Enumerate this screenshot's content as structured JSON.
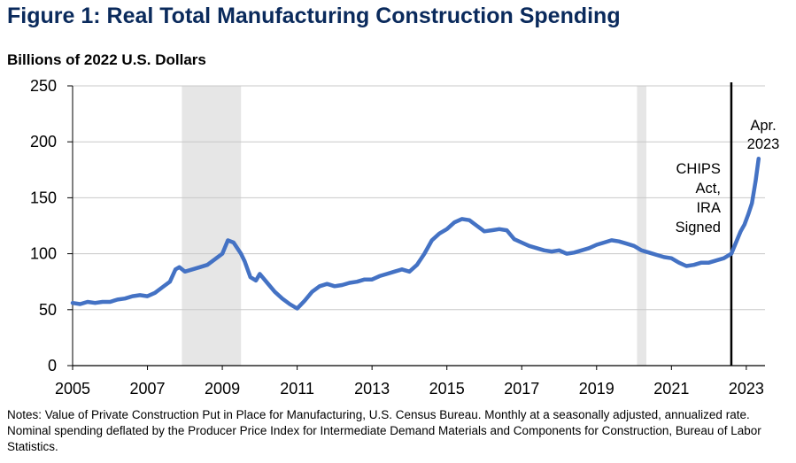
{
  "chart_data": {
    "type": "line",
    "title": "Figure 1: Real Total Manufacturing Construction Spending",
    "ylabel": "Billions of 2022 U.S. Dollars",
    "xlabel": "",
    "xlim": [
      2005,
      2023.5
    ],
    "ylim": [
      0,
      250
    ],
    "yticks": [
      "0",
      "50",
      "100",
      "150",
      "200",
      "250"
    ],
    "xticks": [
      "2005",
      "2007",
      "2009",
      "2011",
      "2013",
      "2015",
      "2017",
      "2019",
      "2021",
      "2023"
    ],
    "recession_shading": [
      [
        2007.92,
        2009.5
      ],
      [
        2020.08,
        2020.33
      ]
    ],
    "event_line": {
      "x": 2022.6,
      "label": [
        "CHIPS",
        "Act,",
        "IRA",
        "Signed"
      ]
    },
    "end_label": [
      "Apr.",
      "2023"
    ],
    "line_color": "#4472c4",
    "series": [
      {
        "x": [
          2005.0,
          2005.2,
          2005.4,
          2005.6,
          2005.8,
          2006.0,
          2006.2,
          2006.4,
          2006.6,
          2006.8,
          2007.0,
          2007.2,
          2007.4,
          2007.6,
          2007.75,
          2007.85,
          2008.0,
          2008.2,
          2008.4,
          2008.6,
          2008.8,
          2009.0,
          2009.15,
          2009.3,
          2009.5,
          2009.6,
          2009.75,
          2009.9,
          2010.0,
          2010.2,
          2010.4,
          2010.6,
          2010.8,
          2011.0,
          2011.2,
          2011.4,
          2011.6,
          2011.8,
          2012.0,
          2012.2,
          2012.4,
          2012.6,
          2012.8,
          2013.0,
          2013.2,
          2013.4,
          2013.6,
          2013.8,
          2014.0,
          2014.2,
          2014.4,
          2014.6,
          2014.8,
          2015.0,
          2015.2,
          2015.4,
          2015.6,
          2015.8,
          2016.0,
          2016.2,
          2016.4,
          2016.6,
          2016.8,
          2017.0,
          2017.2,
          2017.4,
          2017.6,
          2017.8,
          2018.0,
          2018.2,
          2018.4,
          2018.6,
          2018.8,
          2019.0,
          2019.2,
          2019.4,
          2019.6,
          2019.8,
          2020.0,
          2020.2,
          2020.4,
          2020.6,
          2020.8,
          2021.0,
          2021.2,
          2021.4,
          2021.6,
          2021.8,
          2022.0,
          2022.2,
          2022.4,
          2022.6,
          2022.75,
          2022.85,
          2022.95,
          2023.05,
          2023.15,
          2023.25,
          2023.33
        ],
        "values": [
          56,
          55,
          57,
          56,
          57,
          57,
          59,
          60,
          62,
          63,
          62,
          65,
          70,
          75,
          86,
          88,
          84,
          86,
          88,
          90,
          95,
          100,
          112,
          110,
          100,
          93,
          79,
          76,
          82,
          74,
          66,
          60,
          55,
          51,
          58,
          66,
          71,
          73,
          71,
          72,
          74,
          75,
          77,
          77,
          80,
          82,
          84,
          86,
          84,
          90,
          100,
          112,
          118,
          122,
          128,
          131,
          130,
          125,
          120,
          121,
          122,
          121,
          113,
          110,
          107,
          105,
          103,
          102,
          103,
          100,
          101,
          103,
          105,
          108,
          110,
          112,
          111,
          109,
          107,
          103,
          101,
          99,
          97,
          96,
          92,
          89,
          90,
          92,
          92,
          94,
          96,
          100,
          112,
          120,
          126,
          135,
          145,
          165,
          185
        ]
      }
    ]
  },
  "notes": "Notes: Value of Private Construction Put in Place for Manufacturing, U.S. Census Bureau. Monthly at a seasonally adjusted, annualized rate. Nominal spending deflated by the Producer Price Index for Intermediate Demand Materials and Components for Construction, Bureau of Labor Statistics."
}
